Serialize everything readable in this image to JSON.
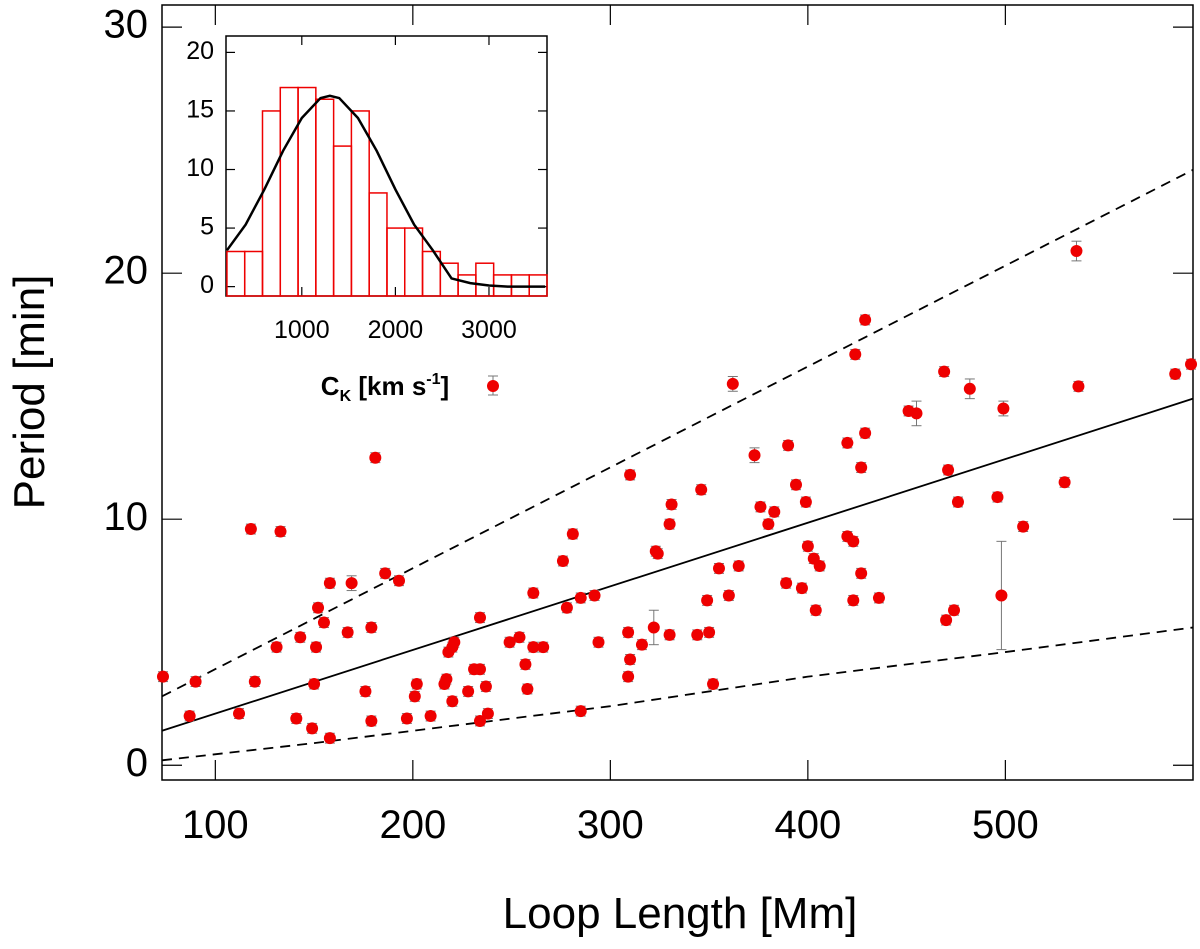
{
  "chart_data": [
    {
      "type": "scatter",
      "xlabel": "Loop Length [Mm]",
      "ylabel": "Period [min]",
      "xlim": [
        73,
        595
      ],
      "ylim": [
        -0.6,
        30.9
      ],
      "xticks": [
        100,
        200,
        300,
        400,
        500
      ],
      "yticks": [
        0,
        10,
        20,
        30
      ],
      "color": "#ee0000",
      "error_color": "#777777",
      "x": [
        73.5,
        90,
        87,
        112,
        120,
        118,
        133,
        131,
        141,
        143,
        149,
        150,
        151,
        152,
        155,
        158,
        158,
        167,
        169,
        176,
        179,
        179,
        181,
        186,
        193,
        197,
        201,
        202,
        209,
        216,
        217,
        218,
        220,
        221,
        220,
        228,
        231,
        234,
        234,
        234,
        237,
        238,
        249,
        254,
        257,
        258,
        261,
        261,
        266,
        276,
        278,
        281,
        285,
        285,
        292,
        294,
        310,
        309,
        309,
        310,
        316,
        323,
        324,
        322,
        330,
        331,
        330,
        346,
        344,
        349,
        350,
        352,
        355,
        360,
        365,
        362,
        373,
        376,
        380,
        383,
        390,
        389,
        394,
        397,
        399,
        400,
        403,
        406,
        404,
        420,
        420,
        423,
        423,
        424,
        427,
        427,
        429,
        429,
        436,
        451,
        455,
        469,
        470,
        471,
        474,
        476,
        482,
        496,
        498,
        499,
        509,
        530,
        536,
        537,
        586,
        594
      ],
      "values": [
        3.6,
        3.4,
        2.0,
        2.1,
        3.4,
        9.6,
        9.5,
        4.8,
        1.9,
        5.2,
        1.5,
        3.3,
        4.8,
        6.4,
        5.8,
        7.4,
        1.1,
        5.4,
        7.4,
        3.0,
        1.8,
        5.6,
        12.5,
        7.8,
        7.5,
        1.9,
        2.8,
        3.3,
        2.0,
        3.3,
        3.5,
        4.6,
        4.8,
        5.0,
        2.6,
        3.0,
        3.9,
        3.9,
        6.0,
        1.8,
        3.2,
        2.1,
        5.0,
        5.2,
        4.1,
        3.1,
        7.0,
        4.8,
        4.8,
        8.3,
        6.4,
        9.4,
        6.8,
        2.2,
        6.9,
        5.0,
        11.8,
        5.4,
        3.6,
        4.3,
        4.9,
        8.7,
        8.6,
        5.6,
        9.8,
        10.6,
        5.3,
        11.2,
        5.3,
        6.7,
        5.4,
        3.3,
        8.0,
        6.9,
        8.1,
        15.5,
        12.6,
        10.5,
        9.8,
        10.3,
        13.0,
        7.4,
        11.4,
        7.2,
        10.7,
        8.9,
        8.4,
        8.1,
        6.3,
        9.3,
        13.1,
        9.1,
        6.7,
        16.7,
        7.8,
        12.1,
        13.5,
        18.1,
        6.8,
        14.4,
        14.3,
        16.0,
        5.9,
        12.0,
        6.3,
        10.7,
        15.3,
        10.9,
        6.9,
        14.5,
        9.7,
        11.5,
        20.9,
        15.4,
        15.9,
        16.3
      ],
      "errors": [
        0.2,
        0.2,
        0.2,
        0.2,
        0.2,
        0.2,
        0.2,
        0.2,
        0.2,
        0.2,
        0.2,
        0.2,
        0.2,
        0.2,
        0.2,
        0.2,
        0.2,
        0.2,
        0.3,
        0.2,
        0.2,
        0.2,
        0.2,
        0.2,
        0.2,
        0.2,
        0.2,
        0.2,
        0.2,
        0.2,
        0.2,
        0.2,
        0.2,
        0.2,
        0.2,
        0.2,
        0.2,
        0.2,
        0.2,
        0.2,
        0.2,
        0.2,
        0.2,
        0.2,
        0.2,
        0.2,
        0.2,
        0.2,
        0.2,
        0.2,
        0.2,
        0.2,
        0.2,
        0.2,
        0.2,
        0.2,
        0.2,
        0.2,
        0.2,
        0.2,
        0.2,
        0.2,
        0.2,
        0.7,
        0.2,
        0.2,
        0.2,
        0.2,
        0.2,
        0.2,
        0.2,
        0.2,
        0.2,
        0.2,
        0.2,
        0.3,
        0.3,
        0.2,
        0.2,
        0.2,
        0.2,
        0.2,
        0.2,
        0.2,
        0.2,
        0.2,
        0.2,
        0.2,
        0.2,
        0.2,
        0.2,
        0.2,
        0.2,
        0.2,
        0.2,
        0.2,
        0.2,
        0.2,
        0.2,
        0.2,
        0.5,
        0.2,
        0.2,
        0.2,
        0.2,
        0.2,
        0.4,
        0.2,
        2.2,
        0.3,
        0.2,
        0.2,
        0.4,
        0.2,
        0.2,
        0.2
      ],
      "lines": [
        {
          "style": "solid",
          "x": [
            73,
            595
          ],
          "y": [
            1.4,
            14.9
          ]
        },
        {
          "style": "dashed",
          "x": [
            73,
            595
          ],
          "y": [
            2.8,
            24.2
          ]
        },
        {
          "style": "dashed",
          "x": [
            73,
            150,
            200,
            300,
            400,
            500,
            595
          ],
          "y": [
            0.2,
            0.9,
            1.4,
            2.4,
            3.6,
            4.6,
            5.6
          ]
        }
      ]
    },
    {
      "type": "histogram",
      "xlabel": [
        "C",
        "K",
        " [km s",
        "-1",
        "]"
      ],
      "xlim": [
        190,
        3620
      ],
      "ylim": [
        -0.8,
        21.4
      ],
      "xticks": [
        1000,
        2000,
        3000
      ],
      "yticks": [
        0,
        5,
        10,
        15,
        20
      ],
      "color": "#ee0000",
      "bins": [
        200,
        390,
        580,
        770,
        960,
        1150,
        1340,
        1530,
        1720,
        1910,
        2100,
        2290,
        2480,
        2670,
        2860,
        3050,
        3240,
        3430,
        3620
      ],
      "counts": [
        3,
        3,
        15,
        17,
        17,
        16,
        12,
        15,
        8,
        5,
        5,
        3,
        2,
        1,
        2,
        1,
        1,
        1
      ],
      "curve": {
        "color": "#000000",
        "x": [
          200,
          400,
          600,
          800,
          1000,
          1200,
          1300,
          1400,
          1600,
          1800,
          2000,
          2200,
          2400,
          2600,
          2800,
          3000,
          3200,
          3600
        ],
        "y": [
          3.1,
          5.3,
          8.3,
          11.6,
          14.4,
          16.1,
          16.3,
          16.1,
          14.4,
          11.6,
          8.3,
          5.3,
          3.1,
          0.7,
          0.3,
          0.1,
          0.0,
          0.0
        ]
      }
    }
  ]
}
